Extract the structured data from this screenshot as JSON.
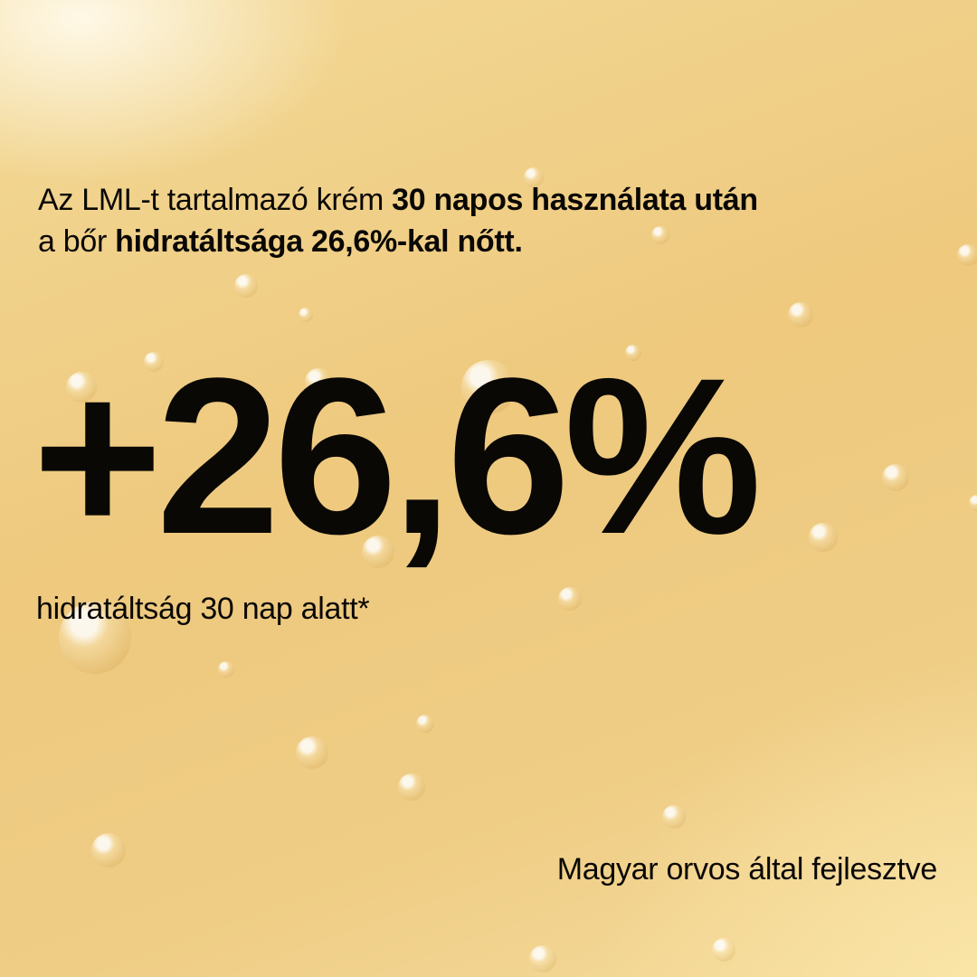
{
  "headline": {
    "line1_regular": "Az LML-t tartalmazó krém ",
    "line1_bold": "30 napos használata után",
    "line2_regular": "a bőr ",
    "line2_bold": "hidratáltsága 26,6%-kal nőtt."
  },
  "stat": {
    "value": "+26,6%",
    "caption": "hidratáltság 30 nap alatt*"
  },
  "footer": "Magyar orvos által fejlesztve",
  "colors": {
    "background": "#eec97e",
    "text": "#0a0805"
  }
}
